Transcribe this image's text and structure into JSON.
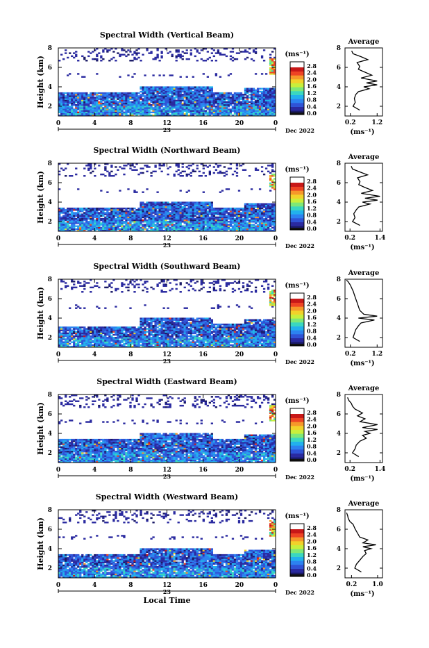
{
  "figure": {
    "shared_colorbar": {
      "unit_label": "(ms⁻¹)",
      "ticks": [
        "0.0",
        "0.4",
        "0.8",
        "1.2",
        "1.6",
        "2.0",
        "2.4",
        "2.8"
      ],
      "colors": [
        "#1a1a66",
        "#2a2aa0",
        "#2f53d6",
        "#2c82f0",
        "#22b1ec",
        "#3ad7c0",
        "#7ee877",
        "#c8ef3c",
        "#f2d22a",
        "#f6982a",
        "#ee4424",
        "#c81818"
      ]
    },
    "x_axis": {
      "ticks": [
        "0",
        "4",
        "8",
        "12",
        "16",
        "20",
        "0"
      ],
      "day_label": "23",
      "month_label": "Dec 2022",
      "label": "Local Time"
    },
    "avg_panel": {
      "title": "Average",
      "unit_label": "(ms⁻¹)"
    }
  },
  "chart_data": [
    {
      "type": "heatmap",
      "title": "Spectral Width (Vertical Beam)",
      "ylabel": "Height (km)",
      "xlim": [
        0,
        24
      ],
      "ylim": [
        1,
        8
      ],
      "yticks": [
        "2",
        "4",
        "6",
        "8"
      ],
      "colorbar_range": [
        0.0,
        2.9
      ],
      "profile": {
        "type": "line",
        "title": "Average",
        "xlabel": "(ms⁻¹)",
        "xticks": [
          "0.2",
          "1.2"
        ],
        "xlim": [
          0.0,
          1.4
        ],
        "ylim": [
          1,
          8
        ],
        "x": [
          0.55,
          0.3,
          0.38,
          0.35,
          0.4,
          0.5,
          0.9,
          0.7,
          1.2,
          0.8,
          1.2,
          0.6,
          1.0,
          0.75,
          0.5,
          0.55,
          0.45,
          0.85,
          0.6,
          0.3,
          0.25
        ],
        "y": [
          1.6,
          2.0,
          2.4,
          2.8,
          3.2,
          3.5,
          3.8,
          4.0,
          4.2,
          4.4,
          4.6,
          4.9,
          5.2,
          5.5,
          5.8,
          6.1,
          6.5,
          6.8,
          7.1,
          7.4,
          7.7
        ]
      }
    },
    {
      "type": "heatmap",
      "title": "Spectral Width (Northward Beam)",
      "ylabel": "Height (km)",
      "xlim": [
        0,
        24
      ],
      "ylim": [
        1,
        8
      ],
      "yticks": [
        "2",
        "4",
        "6",
        "8"
      ],
      "colorbar_range": [
        0.0,
        2.9
      ],
      "profile": {
        "type": "line",
        "title": "Average",
        "xlabel": "(ms⁻¹)",
        "xticks": [
          "0.2",
          "1.4"
        ],
        "xlim": [
          0.0,
          1.5
        ],
        "ylim": [
          1,
          8
        ],
        "x": [
          0.6,
          0.3,
          0.4,
          0.35,
          0.45,
          0.55,
          1.0,
          0.7,
          1.3,
          0.8,
          1.4,
          0.65,
          1.1,
          0.8,
          0.55,
          0.6,
          0.5,
          0.9,
          0.6,
          0.3,
          0.25
        ],
        "y": [
          1.6,
          2.0,
          2.4,
          2.8,
          3.2,
          3.5,
          3.8,
          4.0,
          4.2,
          4.4,
          4.6,
          4.9,
          5.2,
          5.5,
          5.8,
          6.1,
          6.5,
          6.8,
          7.1,
          7.4,
          7.7
        ]
      }
    },
    {
      "type": "heatmap",
      "title": "Spectral Width (Southward Beam)",
      "ylabel": "Height (km)",
      "xlim": [
        0,
        24
      ],
      "ylim": [
        1,
        8
      ],
      "yticks": [
        "2",
        "4",
        "6",
        "8"
      ],
      "colorbar_range": [
        0.0,
        2.9
      ],
      "profile": {
        "type": "line",
        "title": "Average",
        "xlabel": "(ms⁻¹)",
        "xticks": [
          "0.2",
          "1.2"
        ],
        "xlim": [
          0.0,
          1.4
        ],
        "ylim": [
          1,
          8
        ],
        "x": [
          0.55,
          0.3,
          0.35,
          0.4,
          0.5,
          0.6,
          1.1,
          0.5,
          1.2,
          0.7,
          0.55,
          0.5,
          0.45,
          0.4,
          0.35,
          0.3,
          0.25,
          0.2,
          0.15,
          0.1,
          0.05
        ],
        "y": [
          1.6,
          2.0,
          2.4,
          2.8,
          3.2,
          3.5,
          3.8,
          4.0,
          4.2,
          4.4,
          4.8,
          5.2,
          5.6,
          6.0,
          6.4,
          6.8,
          7.1,
          7.4,
          7.6,
          7.8,
          7.9
        ]
      }
    },
    {
      "type": "heatmap",
      "title": "Spectral Width (Eastward Beam)",
      "ylabel": "Height (km)",
      "xlim": [
        0,
        24
      ],
      "ylim": [
        1,
        8
      ],
      "yticks": [
        "2",
        "4",
        "6",
        "8"
      ],
      "colorbar_range": [
        0.0,
        2.9
      ],
      "profile": {
        "type": "line",
        "title": "Average",
        "xlabel": "(ms⁻¹)",
        "xticks": [
          "0.2",
          "1.4"
        ],
        "xlim": [
          0.0,
          1.5
        ],
        "ylim": [
          1,
          8
        ],
        "x": [
          0.55,
          0.3,
          0.4,
          0.45,
          0.6,
          0.85,
          0.7,
          1.0,
          0.8,
          1.3,
          0.7,
          1.3,
          0.6,
          0.8,
          0.5,
          0.7,
          0.4,
          0.3,
          0.25,
          0.15,
          0.1
        ],
        "y": [
          1.6,
          2.0,
          2.4,
          2.8,
          3.2,
          3.5,
          3.8,
          4.0,
          4.2,
          4.4,
          4.6,
          4.9,
          5.2,
          5.5,
          5.8,
          6.1,
          6.5,
          6.8,
          7.1,
          7.4,
          7.7
        ]
      }
    },
    {
      "type": "heatmap",
      "title": "Spectral Width (Westward Beam)",
      "ylabel": "Height (km)",
      "xlabel": "Local Time",
      "xlim": [
        0,
        24
      ],
      "ylim": [
        1,
        8
      ],
      "yticks": [
        "2",
        "4",
        "6",
        "8"
      ],
      "colorbar_range": [
        0.0,
        2.9
      ],
      "profile": {
        "type": "line",
        "title": "Average",
        "xlabel": "(ms⁻¹)",
        "xticks": [
          "0.2",
          "1.0"
        ],
        "xlim": [
          0.0,
          1.15
        ],
        "ylim": [
          1,
          8
        ],
        "x": [
          0.5,
          0.3,
          0.35,
          0.45,
          0.55,
          0.65,
          0.6,
          0.8,
          0.55,
          0.95,
          0.55,
          0.7,
          0.45,
          0.4,
          0.35,
          0.3,
          0.25,
          0.15,
          0.1,
          0.08,
          0.05
        ],
        "y": [
          1.6,
          2.0,
          2.4,
          2.8,
          3.2,
          3.5,
          3.8,
          4.0,
          4.2,
          4.4,
          4.6,
          4.9,
          5.2,
          5.5,
          5.8,
          6.1,
          6.5,
          6.8,
          7.1,
          7.4,
          7.7
        ]
      }
    }
  ]
}
